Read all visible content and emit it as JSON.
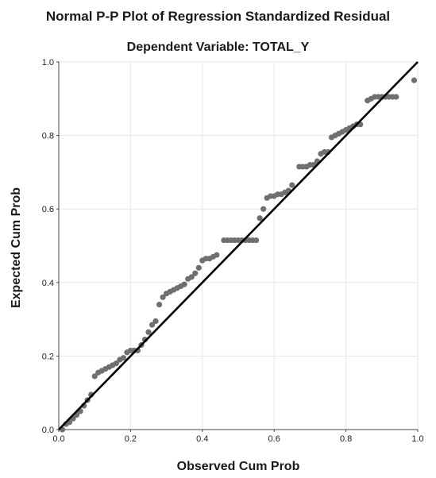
{
  "chart_data": {
    "type": "scatter",
    "title": "Normal P-P Plot of Regression Standardized Residual",
    "subtitle": "Dependent Variable: TOTAL_Y",
    "xlabel": "Observed Cum Prob",
    "ylabel": "Expected Cum Prob",
    "xlim": [
      0,
      1
    ],
    "ylim": [
      0,
      1
    ],
    "xticks": [
      "0.0",
      "0.2",
      "0.4",
      "0.6",
      "0.8",
      "1.0"
    ],
    "yticks": [
      "0.0",
      "0.2",
      "0.4",
      "0.6",
      "0.8",
      "1.0"
    ],
    "grid": true,
    "reference_line": [
      [
        0,
        0
      ],
      [
        1,
        1
      ]
    ],
    "colors": {
      "points": "#6f6f6f",
      "line": "#000000",
      "grid": "#e6e6e6",
      "axis": "#444444"
    },
    "points": [
      [
        0.01,
        0.0
      ],
      [
        0.02,
        0.015
      ],
      [
        0.03,
        0.02
      ],
      [
        0.04,
        0.03
      ],
      [
        0.05,
        0.04
      ],
      [
        0.06,
        0.05
      ],
      [
        0.07,
        0.065
      ],
      [
        0.08,
        0.08
      ],
      [
        0.09,
        0.095
      ],
      [
        0.1,
        0.145
      ],
      [
        0.11,
        0.155
      ],
      [
        0.12,
        0.16
      ],
      [
        0.13,
        0.165
      ],
      [
        0.14,
        0.17
      ],
      [
        0.15,
        0.175
      ],
      [
        0.16,
        0.18
      ],
      [
        0.17,
        0.19
      ],
      [
        0.18,
        0.195
      ],
      [
        0.19,
        0.21
      ],
      [
        0.2,
        0.215
      ],
      [
        0.21,
        0.215
      ],
      [
        0.22,
        0.215
      ],
      [
        0.23,
        0.23
      ],
      [
        0.24,
        0.245
      ],
      [
        0.25,
        0.265
      ],
      [
        0.26,
        0.285
      ],
      [
        0.27,
        0.295
      ],
      [
        0.28,
        0.34
      ],
      [
        0.29,
        0.36
      ],
      [
        0.3,
        0.37
      ],
      [
        0.31,
        0.375
      ],
      [
        0.32,
        0.38
      ],
      [
        0.33,
        0.385
      ],
      [
        0.34,
        0.39
      ],
      [
        0.35,
        0.395
      ],
      [
        0.36,
        0.41
      ],
      [
        0.37,
        0.415
      ],
      [
        0.38,
        0.425
      ],
      [
        0.39,
        0.44
      ],
      [
        0.4,
        0.46
      ],
      [
        0.41,
        0.465
      ],
      [
        0.42,
        0.465
      ],
      [
        0.43,
        0.47
      ],
      [
        0.44,
        0.475
      ],
      [
        0.46,
        0.515
      ],
      [
        0.47,
        0.515
      ],
      [
        0.48,
        0.515
      ],
      [
        0.49,
        0.515
      ],
      [
        0.5,
        0.515
      ],
      [
        0.51,
        0.515
      ],
      [
        0.52,
        0.515
      ],
      [
        0.53,
        0.515
      ],
      [
        0.54,
        0.515
      ],
      [
        0.55,
        0.515
      ],
      [
        0.56,
        0.575
      ],
      [
        0.57,
        0.6
      ],
      [
        0.58,
        0.63
      ],
      [
        0.59,
        0.635
      ],
      [
        0.6,
        0.635
      ],
      [
        0.61,
        0.64
      ],
      [
        0.62,
        0.64
      ],
      [
        0.63,
        0.645
      ],
      [
        0.64,
        0.65
      ],
      [
        0.65,
        0.665
      ],
      [
        0.67,
        0.715
      ],
      [
        0.68,
        0.715
      ],
      [
        0.69,
        0.715
      ],
      [
        0.7,
        0.72
      ],
      [
        0.71,
        0.72
      ],
      [
        0.72,
        0.73
      ],
      [
        0.73,
        0.75
      ],
      [
        0.74,
        0.755
      ],
      [
        0.75,
        0.755
      ],
      [
        0.76,
        0.795
      ],
      [
        0.77,
        0.8
      ],
      [
        0.78,
        0.805
      ],
      [
        0.79,
        0.81
      ],
      [
        0.8,
        0.815
      ],
      [
        0.81,
        0.82
      ],
      [
        0.82,
        0.825
      ],
      [
        0.83,
        0.83
      ],
      [
        0.84,
        0.83
      ],
      [
        0.86,
        0.895
      ],
      [
        0.87,
        0.9
      ],
      [
        0.88,
        0.905
      ],
      [
        0.89,
        0.905
      ],
      [
        0.9,
        0.905
      ],
      [
        0.91,
        0.905
      ],
      [
        0.92,
        0.905
      ],
      [
        0.93,
        0.905
      ],
      [
        0.94,
        0.905
      ],
      [
        0.99,
        0.95
      ]
    ]
  }
}
